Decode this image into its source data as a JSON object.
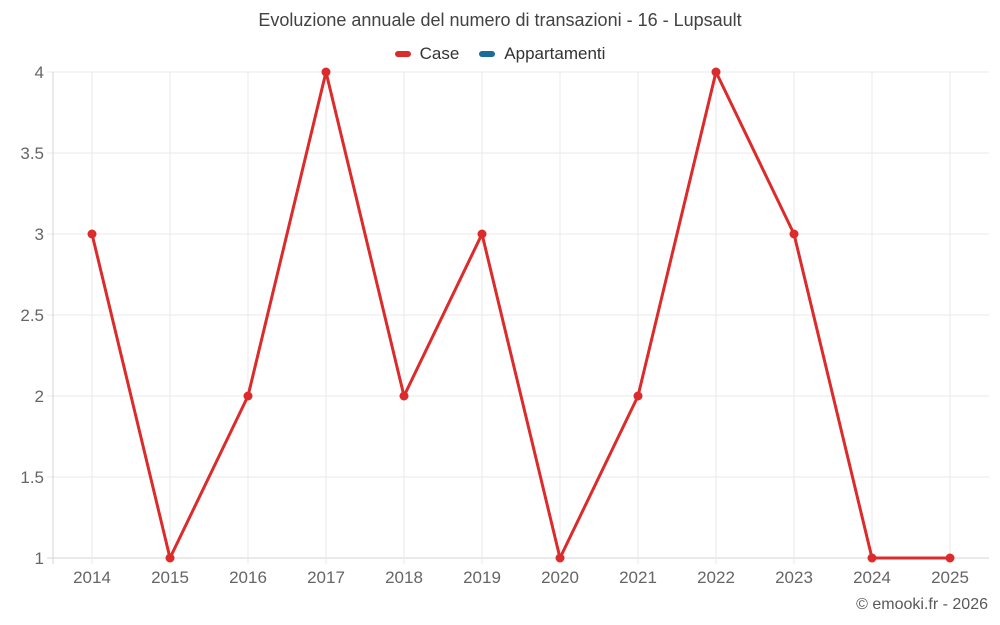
{
  "credit": "© emooki.fr - 2026",
  "colors": {
    "background": "#ffffff",
    "grid": "#e9e9e9",
    "axis": "#d4d4d4",
    "tick_label": "#666666",
    "title": "#424242",
    "legend_text": "#333333",
    "credit": "#595959"
  },
  "chart_data": {
    "type": "line",
    "title": "Evoluzione annuale del numero di transazioni - 16 - Lupsault",
    "categories": [
      "2014",
      "2015",
      "2016",
      "2017",
      "2018",
      "2019",
      "2020",
      "2021",
      "2022",
      "2023",
      "2024",
      "2025"
    ],
    "series": [
      {
        "name": "Case",
        "color": "#dc2b2b",
        "values": [
          3,
          1,
          2,
          4,
          2,
          3,
          1,
          2,
          4,
          3,
          1,
          1
        ]
      },
      {
        "name": "Appartamenti",
        "color": "#1a6d99",
        "values": []
      }
    ],
    "xlabel": "",
    "ylabel": "",
    "ylim": [
      1,
      4
    ],
    "yticks": [
      1,
      1.5,
      2,
      2.5,
      3,
      3.5,
      4
    ],
    "grid": true,
    "legend_position": "top",
    "marker": "circle"
  }
}
